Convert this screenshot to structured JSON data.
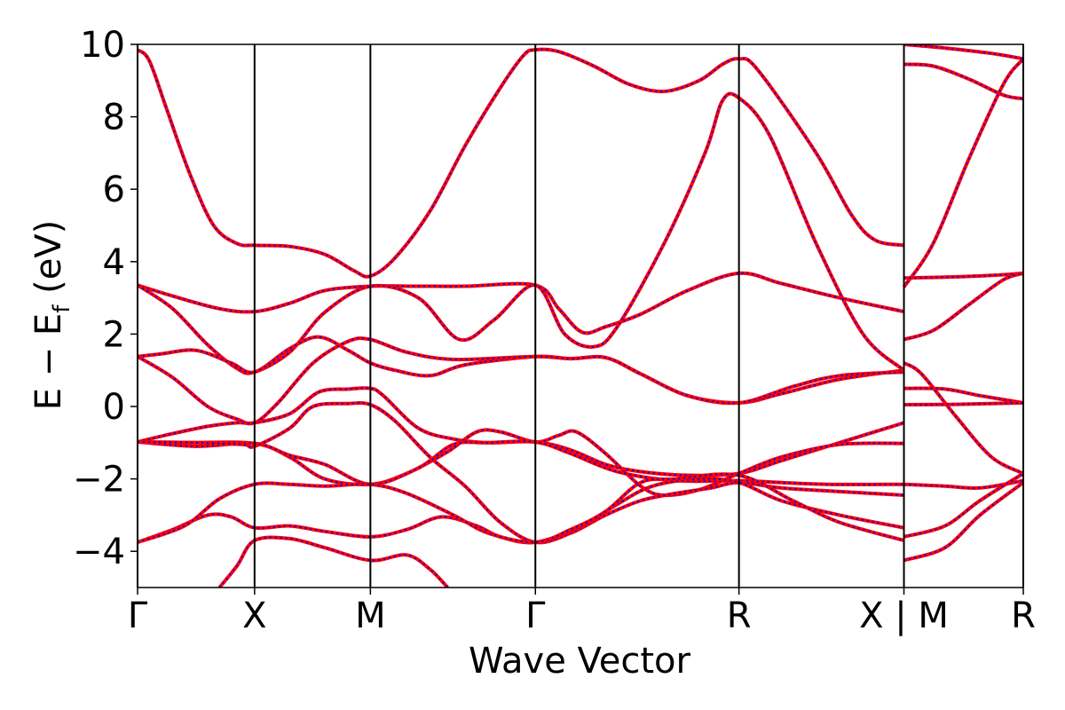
{
  "chart_data": {
    "type": "line",
    "xlabel": "Wave Vector",
    "ylabel": "E − E",
    "ylabel_sub": "f",
    "ylabel_unit": " (eV)",
    "ylim": [
      -5,
      10
    ],
    "yticks": [
      -4,
      -2,
      0,
      2,
      4,
      6,
      8,
      10
    ],
    "ytick_labels": [
      "−4",
      "−2",
      "0",
      "2",
      "4",
      "6",
      "8",
      "10"
    ],
    "xlim": [
      0,
      7.57
    ],
    "kpoints": [
      {
        "x": 0,
        "label": "Γ"
      },
      {
        "x": 1.0,
        "label": "X"
      },
      {
        "x": 1.99,
        "label": "M"
      },
      {
        "x": 3.4,
        "label": "Γ"
      },
      {
        "x": 5.14,
        "label": "R"
      },
      {
        "x": 6.55,
        "label": "X | M"
      },
      {
        "x": 7.57,
        "label": "R"
      }
    ],
    "grid": false,
    "colors": {
      "solid_line": "#ff0000",
      "dashed_line": "#0000ff"
    },
    "series_style": "two overlapping band sets: red solid and blue dashed",
    "bands": [
      [
        [
          0,
          9.85
        ],
        [
          0.1,
          9.55
        ],
        [
          0.25,
          8.2
        ],
        [
          0.45,
          6.4
        ],
        [
          0.65,
          5.0
        ],
        [
          0.85,
          4.5
        ],
        [
          1.0,
          4.45
        ],
        [
          1.3,
          4.42
        ],
        [
          1.6,
          4.2
        ],
        [
          1.85,
          3.75
        ],
        [
          1.99,
          3.6
        ],
        [
          2.2,
          4.1
        ],
        [
          2.5,
          5.4
        ],
        [
          2.8,
          7.2
        ],
        [
          3.1,
          8.8
        ],
        [
          3.3,
          9.7
        ],
        [
          3.4,
          9.85
        ],
        [
          3.6,
          9.8
        ],
        [
          3.9,
          9.4
        ],
        [
          4.2,
          8.9
        ],
        [
          4.5,
          8.7
        ],
        [
          4.8,
          9.0
        ],
        [
          5.0,
          9.45
        ],
        [
          5.14,
          9.6
        ],
        [
          5.3,
          9.3
        ],
        [
          5.8,
          7.0
        ],
        [
          6.1,
          5.3
        ],
        [
          6.3,
          4.6
        ],
        [
          6.55,
          4.45
        ]
      ],
      [
        [
          0,
          3.35
        ],
        [
          0.3,
          3.05
        ],
        [
          0.7,
          2.7
        ],
        [
          1.0,
          2.62
        ],
        [
          1.3,
          2.85
        ],
        [
          1.6,
          3.2
        ],
        [
          1.99,
          3.32
        ],
        [
          2.4,
          3.32
        ],
        [
          2.8,
          3.32
        ],
        [
          3.4,
          3.35
        ],
        [
          3.6,
          2.7
        ],
        [
          3.8,
          2.05
        ],
        [
          4.0,
          2.2
        ],
        [
          4.3,
          2.55
        ],
        [
          4.7,
          3.2
        ],
        [
          5.14,
          3.68
        ],
        [
          5.5,
          3.4
        ],
        [
          6.0,
          3.0
        ],
        [
          6.55,
          2.62
        ]
      ],
      [
        [
          0,
          3.35
        ],
        [
          0.3,
          2.7
        ],
        [
          0.6,
          1.7
        ],
        [
          0.85,
          1.05
        ],
        [
          1.0,
          0.95
        ],
        [
          1.3,
          1.5
        ],
        [
          1.6,
          2.6
        ],
        [
          1.99,
          3.32
        ],
        [
          2.4,
          3.0
        ],
        [
          2.75,
          1.85
        ],
        [
          3.05,
          2.4
        ],
        [
          3.4,
          3.35
        ],
        [
          3.65,
          2.0
        ],
        [
          3.9,
          1.65
        ],
        [
          4.1,
          2.2
        ],
        [
          4.5,
          4.5
        ],
        [
          4.85,
          7.0
        ],
        [
          5.0,
          8.45
        ],
        [
          5.14,
          8.52
        ],
        [
          5.4,
          7.5
        ],
        [
          5.8,
          4.5
        ],
        [
          6.2,
          2.0
        ],
        [
          6.55,
          1.0
        ]
      ],
      [
        [
          0,
          1.38
        ],
        [
          0.2,
          1.45
        ],
        [
          0.5,
          1.55
        ],
        [
          0.8,
          1.2
        ],
        [
          1.0,
          0.95
        ],
        [
          1.3,
          1.6
        ],
        [
          1.55,
          1.92
        ],
        [
          1.8,
          1.55
        ],
        [
          1.99,
          1.2
        ],
        [
          2.2,
          1.0
        ],
        [
          2.5,
          0.85
        ],
        [
          2.8,
          1.15
        ],
        [
          3.4,
          1.38
        ],
        [
          3.7,
          1.32
        ],
        [
          4.0,
          1.35
        ],
        [
          4.3,
          0.9
        ],
        [
          4.7,
          0.3
        ],
        [
          5.14,
          0.1
        ],
        [
          5.5,
          0.35
        ],
        [
          6.0,
          0.75
        ],
        [
          6.55,
          1.0
        ]
      ],
      [
        [
          0,
          1.38
        ],
        [
          0.3,
          0.8
        ],
        [
          0.6,
          0.0
        ],
        [
          0.85,
          -0.35
        ],
        [
          1.0,
          -0.45
        ],
        [
          1.2,
          0.1
        ],
        [
          1.5,
          1.2
        ],
        [
          1.8,
          1.8
        ],
        [
          1.99,
          1.85
        ],
        [
          2.3,
          1.5
        ],
        [
          2.7,
          1.3
        ],
        [
          3.4,
          1.38
        ],
        [
          3.7,
          1.32
        ],
        [
          4.0,
          1.35
        ],
        [
          4.3,
          0.9
        ],
        [
          4.7,
          0.3
        ],
        [
          5.14,
          0.1
        ],
        [
          5.6,
          0.55
        ],
        [
          6.0,
          0.85
        ],
        [
          6.55,
          0.95
        ]
      ],
      [
        [
          0,
          -0.98
        ],
        [
          0.3,
          -0.75
        ],
        [
          0.6,
          -0.55
        ],
        [
          0.85,
          -0.45
        ],
        [
          1.0,
          -0.45
        ],
        [
          1.3,
          -0.2
        ],
        [
          1.55,
          0.4
        ],
        [
          1.8,
          0.48
        ],
        [
          1.99,
          0.5
        ],
        [
          2.1,
          0.3
        ],
        [
          2.4,
          -0.6
        ],
        [
          2.7,
          -0.9
        ],
        [
          3.0,
          -1.0
        ],
        [
          3.4,
          -0.98
        ],
        [
          3.7,
          -1.2
        ],
        [
          4.0,
          -1.6
        ],
        [
          4.3,
          -1.8
        ],
        [
          4.7,
          -1.9
        ],
        [
          5.14,
          -1.85
        ],
        [
          5.5,
          -1.5
        ],
        [
          6.0,
          -1.0
        ],
        [
          6.55,
          -0.45
        ]
      ],
      [
        [
          0,
          -0.98
        ],
        [
          0.4,
          -1.0
        ],
        [
          1.0,
          -1.02
        ],
        [
          1.3,
          -1.4
        ],
        [
          1.6,
          -2.0
        ],
        [
          1.99,
          -2.15
        ],
        [
          2.3,
          -1.85
        ],
        [
          2.65,
          -1.25
        ],
        [
          2.9,
          -0.7
        ],
        [
          3.1,
          -0.7
        ],
        [
          3.4,
          -0.98
        ],
        [
          3.6,
          -0.8
        ],
        [
          3.75,
          -0.7
        ],
        [
          4.0,
          -1.3
        ],
        [
          4.3,
          -2.2
        ],
        [
          4.5,
          -2.45
        ],
        [
          4.8,
          -2.3
        ],
        [
          5.14,
          -1.85
        ],
        [
          5.5,
          -1.4
        ],
        [
          6.0,
          -1.05
        ],
        [
          6.55,
          -1.02
        ]
      ],
      [
        [
          0,
          -0.98
        ],
        [
          0.5,
          -1.1
        ],
        [
          1.0,
          -1.02
        ],
        [
          1.3,
          -1.35
        ],
        [
          1.6,
          -1.6
        ],
        [
          1.99,
          -2.15
        ],
        [
          2.4,
          -1.7
        ],
        [
          2.7,
          -1.05
        ],
        [
          3.0,
          -1.0
        ],
        [
          3.4,
          -0.98
        ],
        [
          3.7,
          -1.3
        ],
        [
          4.1,
          -1.8
        ],
        [
          4.6,
          -2.05
        ],
        [
          5.14,
          -2.05
        ],
        [
          5.5,
          -2.1
        ],
        [
          5.9,
          -2.15
        ],
        [
          6.55,
          -2.15
        ]
      ],
      [
        [
          0,
          -0.98
        ],
        [
          0.5,
          -1.0
        ],
        [
          0.9,
          -1.05
        ],
        [
          1.0,
          -1.1
        ],
        [
          1.3,
          -0.6
        ],
        [
          1.5,
          0.0
        ],
        [
          1.8,
          0.08
        ],
        [
          1.99,
          0.05
        ],
        [
          2.2,
          -0.4
        ],
        [
          2.5,
          -1.4
        ],
        [
          2.8,
          -2.2
        ],
        [
          3.1,
          -3.2
        ],
        [
          3.4,
          -3.75
        ],
        [
          3.7,
          -3.5
        ],
        [
          4.0,
          -3.0
        ],
        [
          4.3,
          -2.6
        ],
        [
          4.6,
          -2.4
        ],
        [
          4.9,
          -2.25
        ],
        [
          5.14,
          -2.1
        ],
        [
          5.5,
          -2.25
        ],
        [
          6.0,
          -2.35
        ],
        [
          6.55,
          -2.45
        ]
      ],
      [
        [
          0,
          -3.75
        ],
        [
          0.3,
          -3.4
        ],
        [
          0.6,
          -3.0
        ],
        [
          0.8,
          -3.05
        ],
        [
          1.0,
          -3.35
        ],
        [
          1.3,
          -3.3
        ],
        [
          1.6,
          -3.45
        ],
        [
          1.99,
          -3.6
        ],
        [
          2.3,
          -3.4
        ],
        [
          2.6,
          -3.05
        ],
        [
          2.9,
          -3.3
        ],
        [
          3.1,
          -3.6
        ],
        [
          3.4,
          -3.75
        ],
        [
          3.8,
          -3.3
        ],
        [
          4.1,
          -2.7
        ],
        [
          4.4,
          -2.2
        ],
        [
          4.8,
          -2.0
        ],
        [
          5.14,
          -2.1
        ],
        [
          5.5,
          -2.6
        ],
        [
          6.0,
          -3.0
        ],
        [
          6.55,
          -3.35
        ]
      ],
      [
        [
          0,
          -3.75
        ],
        [
          0.4,
          -3.3
        ],
        [
          0.7,
          -2.55
        ],
        [
          1.0,
          -2.15
        ],
        [
          1.3,
          -2.15
        ],
        [
          1.6,
          -2.2
        ],
        [
          1.99,
          -2.15
        ],
        [
          2.3,
          -2.4
        ],
        [
          2.7,
          -3.0
        ],
        [
          3.0,
          -3.5
        ],
        [
          3.4,
          -3.75
        ],
        [
          3.7,
          -3.4
        ],
        [
          4.0,
          -2.9
        ],
        [
          4.3,
          -2.1
        ],
        [
          4.6,
          -2.0
        ],
        [
          5.14,
          -1.9
        ],
        [
          5.6,
          -2.6
        ],
        [
          6.0,
          -3.2
        ],
        [
          6.55,
          -3.7
        ]
      ],
      [
        [
          0.7,
          -5.0
        ],
        [
          0.85,
          -4.4
        ],
        [
          1.0,
          -3.7
        ],
        [
          1.3,
          -3.65
        ],
        [
          1.6,
          -3.9
        ],
        [
          1.99,
          -4.25
        ],
        [
          2.3,
          -4.1
        ],
        [
          2.5,
          -4.5
        ],
        [
          2.65,
          -5.0
        ]
      ],
      [
        [
          6.55,
          9.45
        ],
        [
          6.8,
          9.4
        ],
        [
          7.1,
          9.05
        ],
        [
          7.4,
          8.6
        ],
        [
          7.57,
          8.5
        ]
      ],
      [
        [
          6.55,
          3.3
        ],
        [
          6.8,
          4.5
        ],
        [
          7.1,
          6.8
        ],
        [
          7.4,
          8.9
        ],
        [
          7.57,
          9.6
        ]
      ],
      [
        [
          6.55,
          3.55
        ],
        [
          6.9,
          3.57
        ],
        [
          7.3,
          3.62
        ],
        [
          7.57,
          3.68
        ]
      ],
      [
        [
          6.55,
          1.85
        ],
        [
          6.8,
          2.1
        ],
        [
          7.1,
          2.8
        ],
        [
          7.4,
          3.5
        ],
        [
          7.57,
          3.68
        ]
      ],
      [
        [
          6.55,
          1.2
        ],
        [
          6.7,
          0.9
        ],
        [
          7.0,
          -0.3
        ],
        [
          7.3,
          -1.4
        ],
        [
          7.57,
          -1.85
        ]
      ],
      [
        [
          6.55,
          0.5
        ],
        [
          6.9,
          0.48
        ],
        [
          7.2,
          0.3
        ],
        [
          7.57,
          0.1
        ]
      ],
      [
        [
          6.55,
          0.05
        ],
        [
          7.0,
          0.06
        ],
        [
          7.57,
          0.1
        ]
      ],
      [
        [
          6.55,
          -2.15
        ],
        [
          6.9,
          -2.2
        ],
        [
          7.2,
          -2.25
        ],
        [
          7.57,
          -2.05
        ]
      ],
      [
        [
          6.55,
          -3.6
        ],
        [
          6.9,
          -3.3
        ],
        [
          7.2,
          -2.6
        ],
        [
          7.57,
          -1.85
        ]
      ],
      [
        [
          6.55,
          -4.25
        ],
        [
          6.9,
          -3.9
        ],
        [
          7.2,
          -3.0
        ],
        [
          7.57,
          -2.1
        ]
      ],
      [
        [
          6.55,
          10.0
        ],
        [
          6.9,
          9.9
        ],
        [
          7.3,
          9.75
        ],
        [
          7.57,
          9.6
        ]
      ]
    ]
  }
}
